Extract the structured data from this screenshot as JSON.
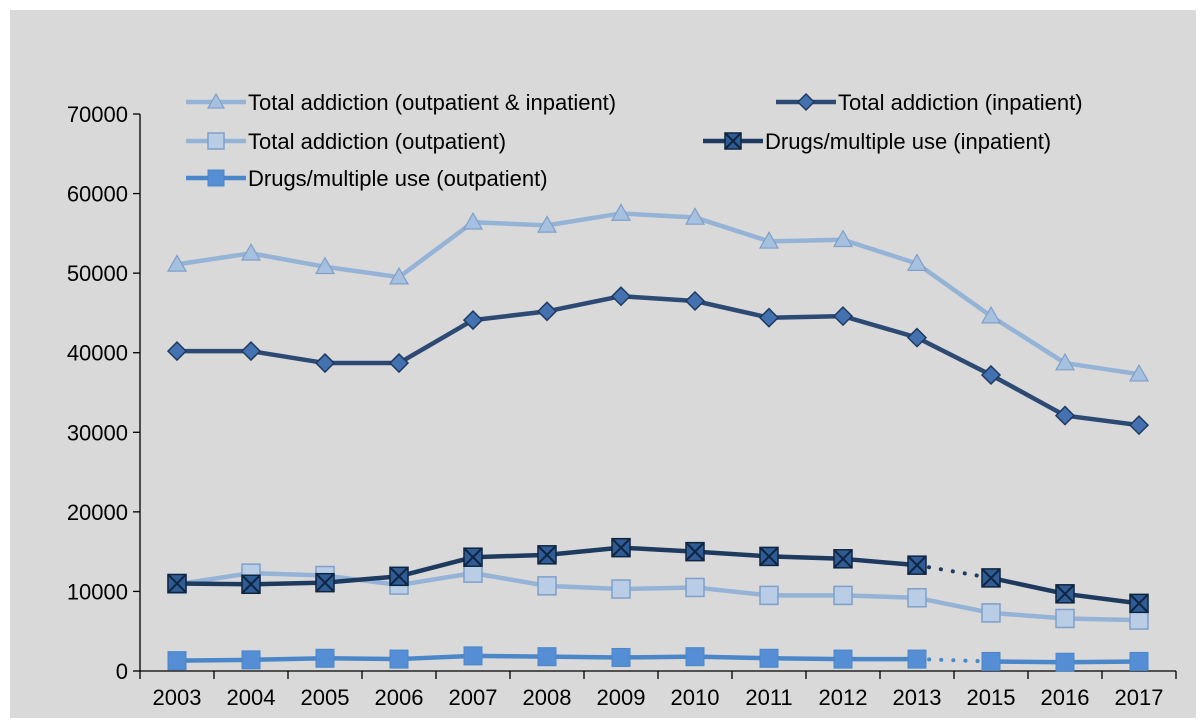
{
  "chart_data": {
    "type": "line",
    "title": "",
    "xlabel": "",
    "ylabel": "",
    "categories": [
      "2003",
      "2004",
      "2005",
      "2006",
      "2007",
      "2008",
      "2009",
      "2010",
      "2011",
      "2012",
      "2013",
      "2015",
      "2016",
      "2017"
    ],
    "ylim": [
      0,
      70000
    ],
    "yticks": [
      0,
      10000,
      20000,
      30000,
      40000,
      50000,
      60000,
      70000
    ],
    "grid": false,
    "legend_position": "top",
    "background": "#d9d9d9",
    "gap_after": "2013",
    "series": [
      {
        "name": "Total addiction (outpatient & inpatient)",
        "color": "#95b3d7",
        "marker": "triangle",
        "values": [
          51100,
          52500,
          50800,
          49500,
          56400,
          56000,
          57500,
          57000,
          54000,
          54200,
          51200,
          44600,
          38700,
          37300
        ]
      },
      {
        "name": "Total addiction (inpatient)",
        "color": "#2c4a73",
        "marker": "diamond",
        "values": [
          40200,
          40200,
          38700,
          38700,
          44100,
          45200,
          47100,
          46500,
          44400,
          44600,
          41900,
          37200,
          32100,
          30900
        ]
      },
      {
        "name": "Total addiction (outpatient)",
        "color": "#95b3d7",
        "marker": "square-hollow",
        "values": [
          10900,
          12300,
          12000,
          10800,
          12300,
          10700,
          10300,
          10500,
          9500,
          9500,
          9200,
          7300,
          6600,
          6400
        ]
      },
      {
        "name": "Drugs/multiple use (inpatient)",
        "color": "#1f3a5f",
        "marker": "square-x",
        "values": [
          11000,
          10900,
          11100,
          11900,
          14300,
          14600,
          15500,
          15000,
          14400,
          14100,
          13300,
          11700,
          9700,
          8500
        ]
      },
      {
        "name": "Drugs/multiple use (outpatient)",
        "color": "#4a86c8",
        "marker": "square",
        "values": [
          1300,
          1400,
          1600,
          1500,
          1900,
          1800,
          1700,
          1800,
          1600,
          1500,
          1500,
          1200,
          1100,
          1200
        ]
      }
    ]
  }
}
